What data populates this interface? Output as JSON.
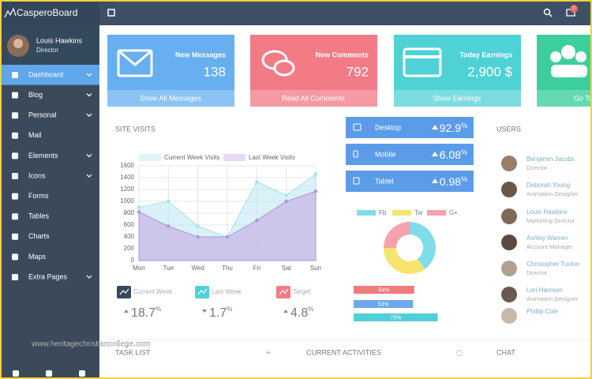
{
  "brand": "CasperoBoard",
  "notification_count": 7,
  "profile": {
    "name": "Louis Hawkins",
    "role": "Director"
  },
  "nav": [
    "Dashboard",
    "Blog",
    "Personal",
    "Mail",
    "Elements",
    "Icons",
    "Forms",
    "Tables",
    "Charts",
    "Maps",
    "Extra Pages"
  ],
  "cards": [
    {
      "title": "New Messages",
      "value": 138,
      "link": "Show All Messages"
    },
    {
      "title": "New Comments",
      "value": 792,
      "link": "Read All Comments"
    },
    {
      "title": "Today Earnings",
      "value": "2,900 $",
      "link": "Show Earnings"
    },
    {
      "link": "Go To"
    }
  ],
  "site_visits_title": "SITE VISITS",
  "chart_data": [
    {
      "type": "area",
      "categories": [
        "Mon",
        "Tue",
        "Wed",
        "Thu",
        "Fri",
        "Sat",
        "Sun"
      ],
      "series": [
        {
          "name": "Current Week Visits",
          "color": "#bfe9f4",
          "values": [
            900,
            1000,
            580,
            400,
            1330,
            1100,
            1460
          ]
        },
        {
          "name": "Last Week Visits",
          "color": "#c9b6e6",
          "values": [
            820,
            580,
            400,
            400,
            680,
            1000,
            1170
          ]
        }
      ],
      "ylim": [
        0,
        1600
      ],
      "yticks": [
        0,
        200,
        400,
        600,
        800,
        1000,
        1200,
        1400,
        1600
      ],
      "grid": true
    },
    {
      "type": "pie",
      "series": [
        {
          "name": "Fb",
          "color": "#80dce9",
          "values": [
            40
          ]
        },
        {
          "name": "Tw",
          "color": "#f7e46e",
          "values": [
            35
          ]
        },
        {
          "name": "G+",
          "color": "#f6a2ae",
          "values": [
            25
          ]
        }
      ]
    },
    {
      "type": "progress",
      "values": [
        54,
        53,
        75
      ],
      "value_labels": [
        "54%",
        "53%",
        "75%"
      ],
      "colors": [
        "#f07b7b",
        "#6ea8ec",
        "#4fcfd6"
      ],
      "xlim": [
        0,
        100
      ]
    }
  ],
  "stats": [
    {
      "label": "Current Week",
      "value": 18.7
    },
    {
      "label": "Last Week",
      "value": 1.7
    },
    {
      "label": "Target",
      "value": 4.8
    }
  ],
  "devices": [
    {
      "name": "Desktop",
      "value": 92.9
    },
    {
      "name": "Mobile",
      "value": 6.08
    },
    {
      "name": "Tablet",
      "value": 0.98
    }
  ],
  "percent_sign": "%",
  "users_title": "USERS",
  "users": [
    {
      "name": "Benjamin Jacobs",
      "role": "Director"
    },
    {
      "name": "Deborah Young",
      "role": "Animation Designer"
    },
    {
      "name": "Louis Hawkins",
      "role": "Marketing Director"
    },
    {
      "name": "Ashley Warren",
      "role": "Account Manager"
    },
    {
      "name": "Christopher Tucker",
      "role": "Director"
    },
    {
      "name": "Lori Harrison",
      "role": "Animation Designer"
    },
    {
      "name": "Phillip Cole"
    }
  ],
  "watermark": "www.heritagechristiancollege.com",
  "bottom": {
    "task_list": "TASK LIST",
    "add": "+",
    "current_activities": "CURRENT ACTIVITIES",
    "chat": "CHAT"
  }
}
